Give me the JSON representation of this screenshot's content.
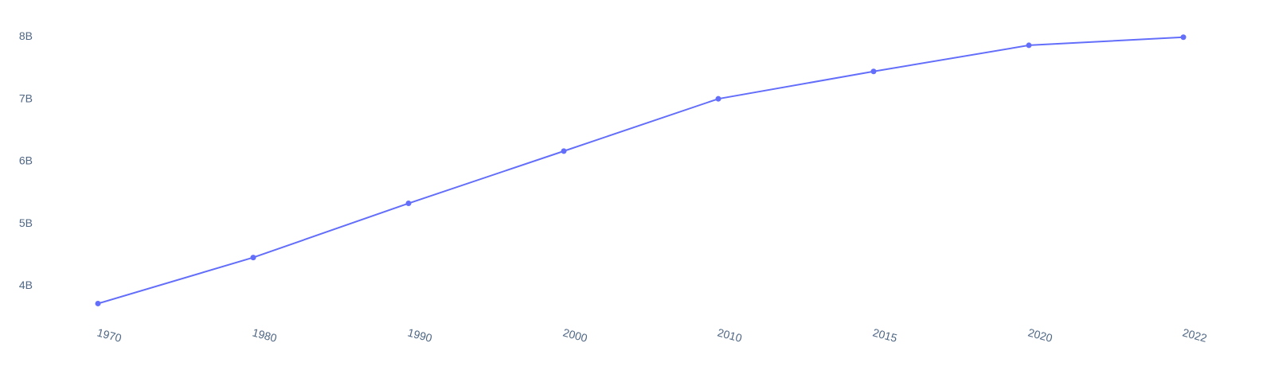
{
  "chart_data": {
    "type": "line",
    "title": "",
    "xlabel": "",
    "ylabel": "",
    "x": [
      "1970",
      "1980",
      "1990",
      "2000",
      "2010",
      "2015",
      "2020",
      "2022"
    ],
    "series": [
      {
        "values": [
          3700000000,
          4440000000,
          5310000000,
          6150000000,
          6990000000,
          7430000000,
          7850000000,
          7980000000
        ]
      }
    ],
    "ylim": [
      3500000000,
      8200000000
    ],
    "yticks": [
      {
        "value": 4000000000,
        "label": "4B"
      },
      {
        "value": 5000000000,
        "label": "5B"
      },
      {
        "value": 6000000000,
        "label": "6B"
      },
      {
        "value": 7000000000,
        "label": "7B"
      },
      {
        "value": 8000000000,
        "label": "8B"
      }
    ],
    "grid": false,
    "legend": "none",
    "markers": true,
    "colors": {
      "line": "#636efa",
      "tick_text": "#506784",
      "background": "#ffffff"
    }
  }
}
